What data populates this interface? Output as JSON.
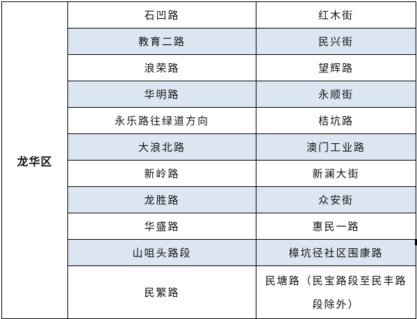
{
  "district": "龙华区",
  "highlight_color": "#dce6f2",
  "rows": [
    {
      "left": "石凹路",
      "right": "红木街"
    },
    {
      "left": "教育二路",
      "right": "民兴街"
    },
    {
      "left": "浪荣路",
      "right": "望辉路"
    },
    {
      "left": "华明路",
      "right": "永顺街"
    },
    {
      "left": "永乐路往绿道方向",
      "right": "桔坑路"
    },
    {
      "left": "大浪北路",
      "right": "澳门工业路"
    },
    {
      "left": "新岭路",
      "right": "新澜大街"
    },
    {
      "left": "龙胜路",
      "right": "众安街"
    },
    {
      "left": "华盛路",
      "right": "惠民一路"
    },
    {
      "left": "山咀头路段",
      "right": "樟坑径社区围康路"
    },
    {
      "left": "民繁路",
      "right": "民塘路（民宝路段至民丰路段除外）"
    }
  ]
}
